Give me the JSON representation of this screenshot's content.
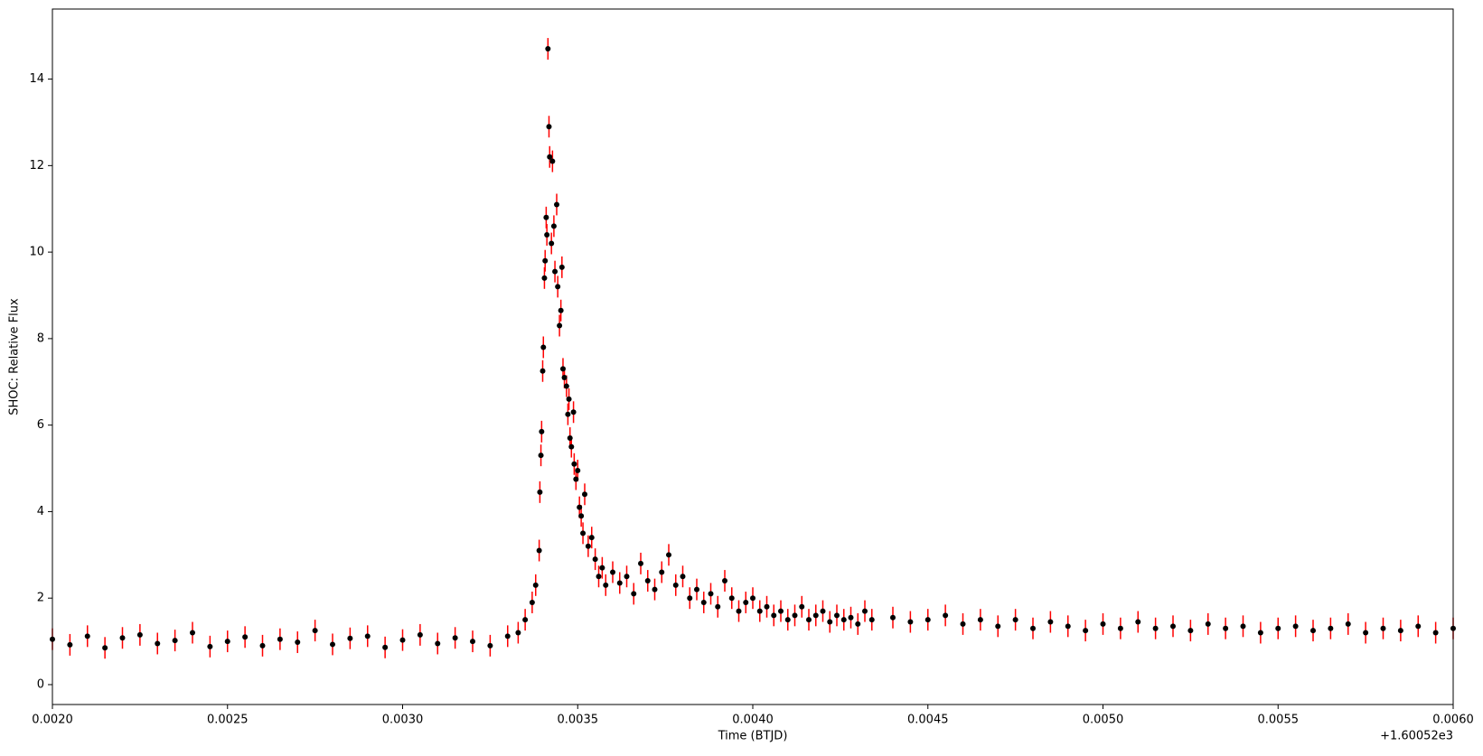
{
  "chart_data": {
    "type": "errorbar-scatter",
    "xlabel": "Time (BTJD)",
    "ylabel": "SHOC: Relative Flux",
    "x_offset_label": "+1.60052e3",
    "xlim": [
      0.002,
      0.006
    ],
    "ylim": [
      -0.46,
      15.62
    ],
    "xticks": [
      {
        "value": 0.002,
        "label": "0.0020"
      },
      {
        "value": 0.0025,
        "label": "0.0025"
      },
      {
        "value": 0.003,
        "label": "0.0030"
      },
      {
        "value": 0.0035,
        "label": "0.0035"
      },
      {
        "value": 0.004,
        "label": "0.0040"
      },
      {
        "value": 0.0045,
        "label": "0.0045"
      },
      {
        "value": 0.005,
        "label": "0.0050"
      },
      {
        "value": 0.0055,
        "label": "0.0055"
      },
      {
        "value": 0.006,
        "label": "0.0060"
      }
    ],
    "yticks": [
      0,
      2,
      4,
      6,
      8,
      10,
      12,
      14
    ],
    "marker_color": "#000000",
    "error_color": "#ff0000",
    "yerr": 0.25,
    "x": [
      0.002,
      0.00205,
      0.0021,
      0.00215,
      0.0022,
      0.00225,
      0.0023,
      0.00235,
      0.0024,
      0.00245,
      0.0025,
      0.00255,
      0.0026,
      0.00265,
      0.0027,
      0.00275,
      0.0028,
      0.00285,
      0.0029,
      0.00295,
      0.003,
      0.00305,
      0.0031,
      0.00315,
      0.0032,
      0.00325,
      0.0033,
      0.00333,
      0.00335,
      0.00337,
      0.00338,
      0.00339,
      0.003392,
      0.003395,
      0.003397,
      0.0034,
      0.003402,
      0.003405,
      0.003407,
      0.00341,
      0.003412,
      0.003415,
      0.003418,
      0.00342,
      0.003425,
      0.003428,
      0.003432,
      0.003435,
      0.00344,
      0.003443,
      0.003448,
      0.003452,
      0.003455,
      0.003458,
      0.003462,
      0.003468,
      0.003472,
      0.003475,
      0.003478,
      0.003482,
      0.003488,
      0.00349,
      0.003495,
      0.0035,
      0.003505,
      0.00351,
      0.003515,
      0.00352,
      0.00353,
      0.00354,
      0.00355,
      0.00356,
      0.00357,
      0.00358,
      0.0036,
      0.00362,
      0.00364,
      0.00366,
      0.00368,
      0.0037,
      0.00372,
      0.00374,
      0.00376,
      0.00378,
      0.0038,
      0.00382,
      0.00384,
      0.00386,
      0.00388,
      0.0039,
      0.00392,
      0.00394,
      0.00396,
      0.00398,
      0.004,
      0.00402,
      0.00404,
      0.00406,
      0.00408,
      0.0041,
      0.00412,
      0.00414,
      0.00416,
      0.00418,
      0.0042,
      0.00422,
      0.00424,
      0.00426,
      0.00428,
      0.0043,
      0.00432,
      0.00434,
      0.0044,
      0.00445,
      0.0045,
      0.00455,
      0.0046,
      0.00465,
      0.0047,
      0.00475,
      0.0048,
      0.00485,
      0.0049,
      0.00495,
      0.005,
      0.00505,
      0.0051,
      0.00515,
      0.0052,
      0.00525,
      0.0053,
      0.00535,
      0.0054,
      0.00545,
      0.0055,
      0.00555,
      0.0056,
      0.00565,
      0.0057,
      0.00575,
      0.0058,
      0.00585,
      0.0059,
      0.00595,
      0.006
    ],
    "values": [
      1.05,
      0.92,
      1.12,
      0.85,
      1.08,
      1.15,
      0.95,
      1.02,
      1.2,
      0.88,
      1.0,
      1.1,
      0.9,
      1.05,
      0.98,
      1.25,
      0.93,
      1.07,
      1.12,
      0.86,
      1.03,
      1.15,
      0.95,
      1.08,
      1.0,
      0.9,
      1.12,
      1.2,
      1.5,
      1.9,
      2.3,
      3.1,
      4.45,
      5.3,
      5.85,
      7.25,
      7.8,
      9.4,
      9.8,
      10.8,
      10.4,
      14.7,
      12.9,
      12.2,
      10.2,
      12.1,
      10.6,
      9.55,
      11.1,
      9.2,
      8.3,
      8.65,
      9.65,
      7.3,
      7.1,
      6.9,
      6.25,
      6.6,
      5.7,
      5.5,
      6.3,
      5.1,
      4.75,
      4.95,
      4.1,
      3.9,
      3.5,
      4.4,
      3.2,
      3.4,
      2.9,
      2.5,
      2.7,
      2.3,
      2.6,
      2.35,
      2.5,
      2.1,
      2.8,
      2.4,
      2.2,
      2.6,
      3.0,
      2.3,
      2.5,
      2.0,
      2.2,
      1.9,
      2.1,
      1.8,
      2.4,
      2.0,
      1.7,
      1.9,
      2.0,
      1.7,
      1.8,
      1.6,
      1.7,
      1.5,
      1.6,
      1.8,
      1.5,
      1.6,
      1.7,
      1.45,
      1.6,
      1.5,
      1.55,
      1.4,
      1.7,
      1.5,
      1.55,
      1.45,
      1.5,
      1.6,
      1.4,
      1.5,
      1.35,
      1.5,
      1.3,
      1.45,
      1.35,
      1.25,
      1.4,
      1.3,
      1.45,
      1.3,
      1.35,
      1.25,
      1.4,
      1.3,
      1.35,
      1.2,
      1.3,
      1.35,
      1.25,
      1.3,
      1.4,
      1.2,
      1.3,
      1.25,
      1.35,
      1.2,
      1.3
    ]
  }
}
